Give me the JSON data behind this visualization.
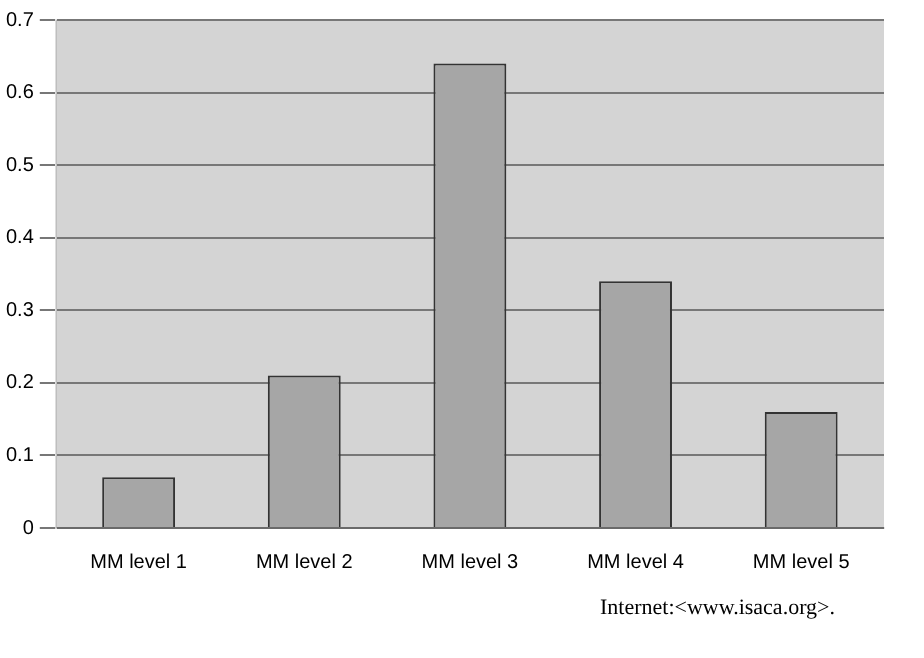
{
  "chart_data": {
    "type": "bar",
    "categories": [
      "MM level 1",
      "MM level 2",
      "MM level 3",
      "MM level 4",
      "MM level 5"
    ],
    "values": [
      0.07,
      0.21,
      0.64,
      0.34,
      0.16
    ],
    "color": "#a6a6a6",
    "ylim": [
      0,
      0.7
    ],
    "yticks": [
      0,
      0.1,
      0.2,
      0.3,
      0.4,
      0.5,
      0.6,
      0.7
    ],
    "grid": "y",
    "legend": false,
    "annotations": [
      "Internet:<www.isaca.org>."
    ]
  }
}
